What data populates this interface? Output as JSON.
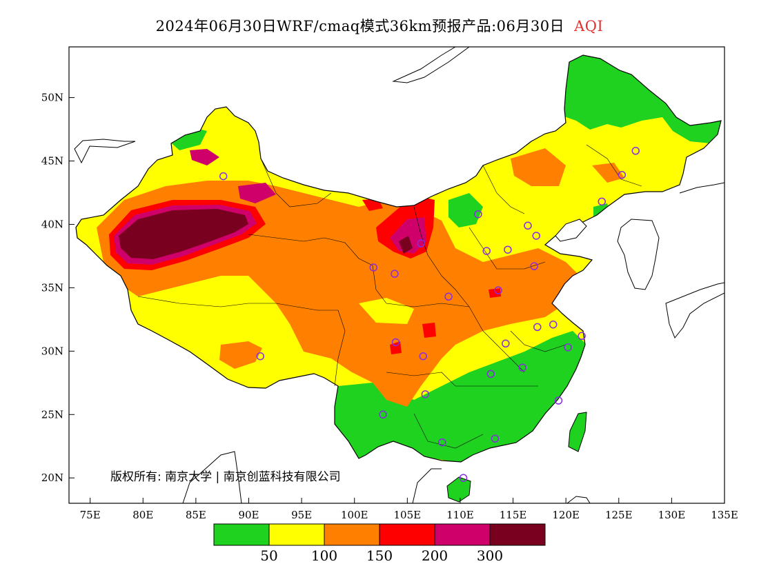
{
  "title": {
    "main": "2024年06月30日WRF/cmaq模式36km预报产品:06月30日",
    "variable": "AQI"
  },
  "map": {
    "lon_range": [
      73,
      135
    ],
    "lat_range": [
      18,
      54
    ],
    "lat_ticks": [
      "50N",
      "45N",
      "40N",
      "35N",
      "30N",
      "25N",
      "20N"
    ],
    "lon_ticks": [
      "75E",
      "80E",
      "85E",
      "90E",
      "95E",
      "100E",
      "105E",
      "110E",
      "115E",
      "120E",
      "125E",
      "130E",
      "135E"
    ],
    "copyright": "版权所有: 南京大学 | 南京创蓝科技有限公司",
    "station_color": "#8a2be2"
  },
  "legend": {
    "colors": [
      "#1fd21f",
      "#ffff00",
      "#ff8000",
      "#ff0000",
      "#d0006a",
      "#7a0020"
    ],
    "labels": [
      "50",
      "100",
      "150",
      "200",
      "300"
    ]
  }
}
